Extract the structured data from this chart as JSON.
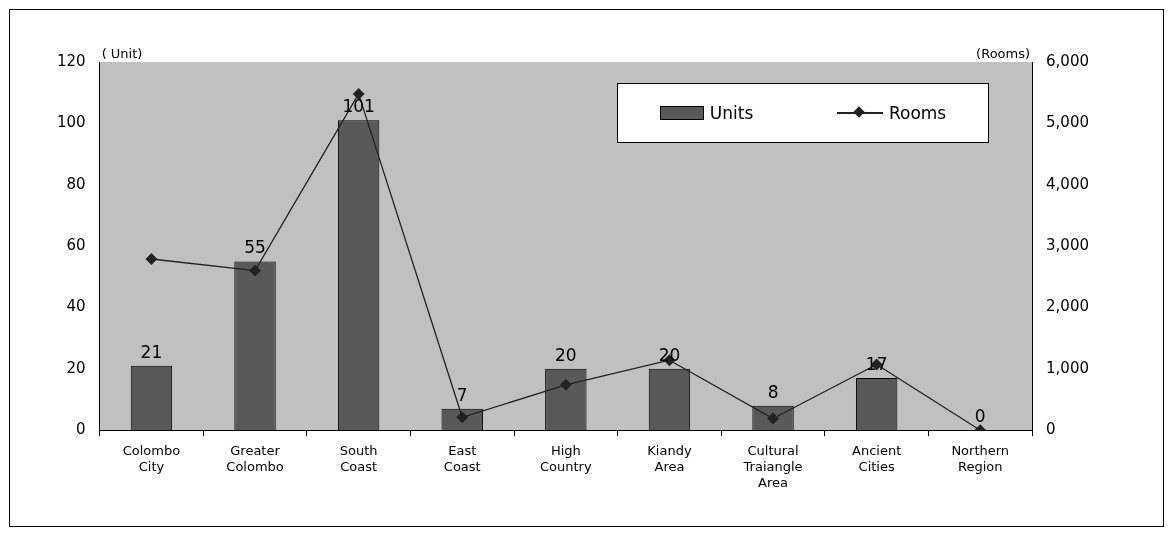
{
  "chart_data": {
    "type": "bar",
    "ylabel": "( Unit)",
    "y2label": "(Rooms)",
    "categories": [
      "Colombo City",
      "Greater Colombo",
      "South Coast",
      "East Coast",
      "High Country",
      "Kiandy Area",
      "Cultural Traiangle Area",
      "Ancient Cities",
      "Northern Region"
    ],
    "series": [
      {
        "name": "Units",
        "color": "#595959",
        "values": [
          21,
          55,
          101,
          7,
          20,
          20,
          8,
          17,
          0
        ],
        "data_labels": true
      },
      {
        "name": "Rooms",
        "type": "line",
        "axis": "y2",
        "color": "#222222",
        "marker": "diamond",
        "values": [
          2790,
          2600,
          5480,
          210,
          740,
          1140,
          190,
          1070,
          0
        ]
      }
    ],
    "ylim": [
      0,
      120
    ],
    "yticks": [
      0,
      20,
      40,
      60,
      80,
      100,
      120
    ],
    "y2lim": [
      0,
      6000
    ],
    "y2ticks": [
      {
        "value": 0,
        "label": "0"
      },
      {
        "value": 1000,
        "label": "1,000"
      },
      {
        "value": 2000,
        "label": "2,000"
      },
      {
        "value": 3000,
        "label": "3,000"
      },
      {
        "value": 4000,
        "label": "4,000"
      },
      {
        "value": 5000,
        "label": "5,000"
      },
      {
        "value": 6000,
        "label": "6,000"
      }
    ],
    "legend": "top right",
    "grid": false
  }
}
